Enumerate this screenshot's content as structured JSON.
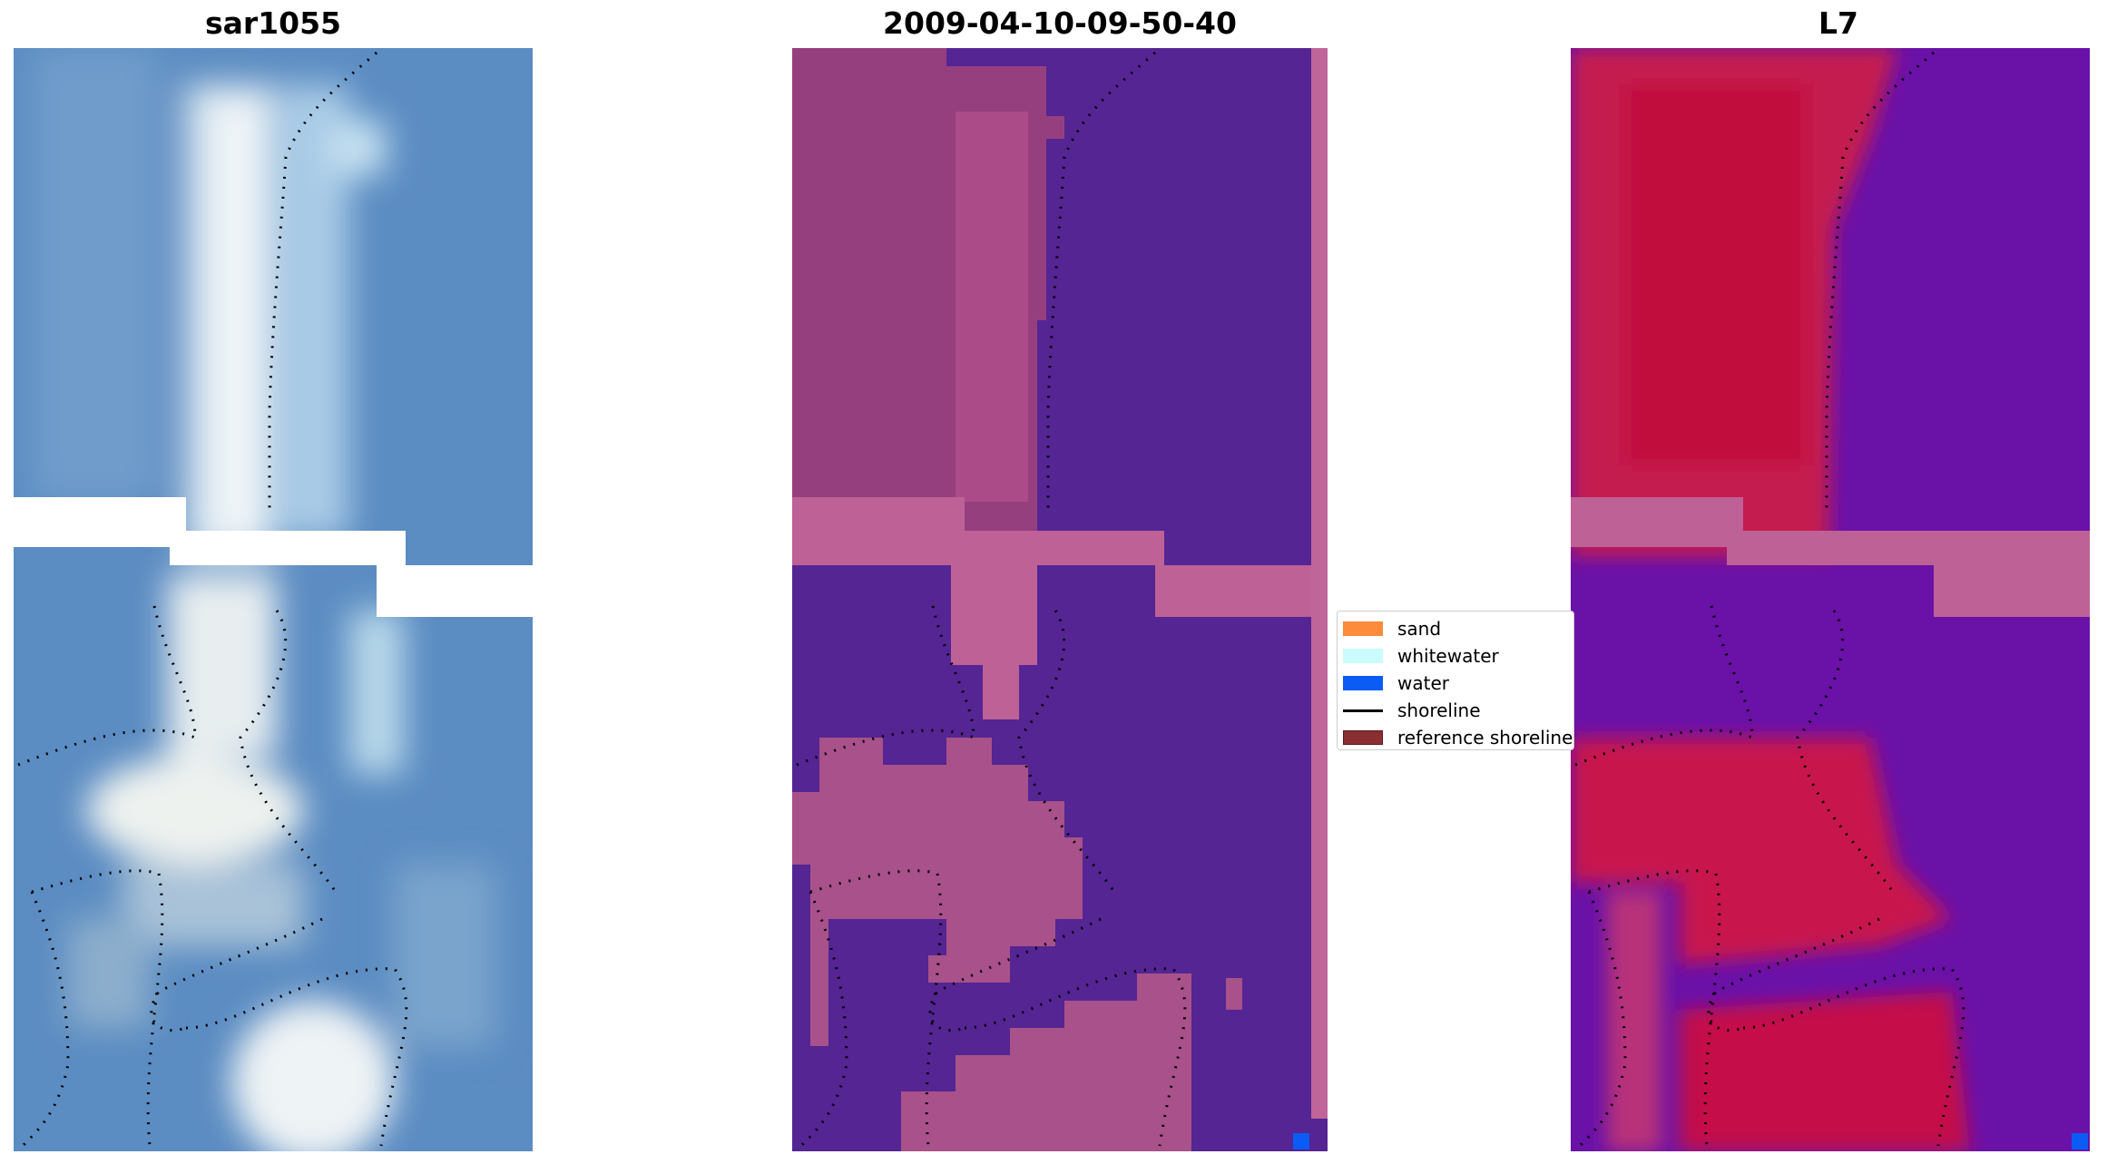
{
  "panels": [
    {
      "title": "sar1055",
      "icon": "rgb-satellite-image"
    },
    {
      "title": "2009-04-10-09-50-40",
      "icon": "classified-image"
    },
    {
      "title": "L7",
      "icon": "mndwi-index-image"
    }
  ],
  "legend": {
    "items": [
      {
        "label": "sand",
        "color": "#fd8b3c",
        "kind": "patch"
      },
      {
        "label": "whitewater",
        "color": "#c9fbff",
        "kind": "patch"
      },
      {
        "label": "water",
        "color": "#0a5cf5",
        "kind": "patch"
      },
      {
        "label": "shoreline",
        "color": "#000000",
        "kind": "line"
      },
      {
        "label": "reference shoreline",
        "color": "#8b2e32",
        "kind": "patch"
      }
    ]
  },
  "colors": {
    "rgb_water": "#5a8cc3",
    "classified_background": "#542593",
    "classified_sand": "#a64d8a",
    "mndwi_land": "#c8184e",
    "mndwi_water": "#6a11a8",
    "nodata_band": "#bf6297"
  }
}
